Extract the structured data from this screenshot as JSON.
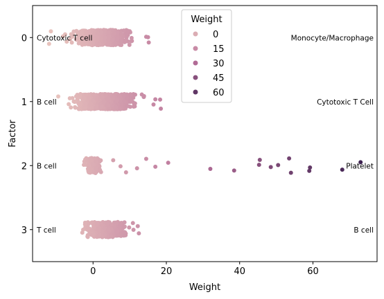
{
  "chart_data": {
    "type": "scatter",
    "style": "stripplot",
    "xlabel": "Weight",
    "ylabel": "Factor",
    "xlim": [
      -16.5,
      77.5
    ],
    "ylim": [
      -0.5,
      3.5
    ],
    "xticks": [
      0,
      20,
      40,
      60
    ],
    "categories": [
      "0",
      "1",
      "2",
      "3"
    ],
    "grid": false,
    "legend": {
      "title": "Weight",
      "placement": "top-center",
      "entries": [
        {
          "label": "0",
          "value": 0
        },
        {
          "label": "15",
          "value": 15
        },
        {
          "label": "30",
          "value": 30
        },
        {
          "label": "45",
          "value": 45
        },
        {
          "label": "60",
          "value": 60
        }
      ]
    },
    "color_scale": {
      "low": "#e8c3bd",
      "mid": "#b8709a",
      "high": "#3d2150",
      "domain": [
        -10,
        73
      ]
    },
    "strips": [
      {
        "category": "0",
        "dense_range": [
          -10,
          14
        ],
        "sparse_points": [
          -12,
          -11.5,
          14.5,
          15,
          15.2
        ]
      },
      {
        "category": "1",
        "dense_range": [
          -10,
          16
        ],
        "sparse_points": [
          -9.5,
          16.5,
          17,
          18.3,
          18.5
        ]
      },
      {
        "category": "2",
        "dense_range": [
          -3,
          3
        ],
        "sparse_points": [
          -2.5,
          5.5,
          7.5,
          9,
          12,
          14.5,
          17,
          20.5,
          32,
          38.5,
          45.5,
          45.3,
          48.5,
          50.5,
          53.5,
          54,
          59,
          59.2,
          68,
          73
        ]
      },
      {
        "category": "3",
        "dense_range": [
          -5,
          12
        ],
        "sparse_points": [
          12.2,
          12.5
        ]
      }
    ],
    "annotations": [
      {
        "category": "0",
        "side": "left",
        "text": "Cytotoxic T cell"
      },
      {
        "category": "0",
        "side": "right",
        "text": "Monocyte/Macrophage"
      },
      {
        "category": "1",
        "side": "left",
        "text": "B cell"
      },
      {
        "category": "1",
        "side": "right",
        "text": "Cytotoxic T Cell"
      },
      {
        "category": "2",
        "side": "left",
        "text": "B cell"
      },
      {
        "category": "2",
        "side": "right",
        "text": "Platelet"
      },
      {
        "category": "3",
        "side": "left",
        "text": "T cell"
      },
      {
        "category": "3",
        "side": "right",
        "text": "B cell"
      }
    ]
  }
}
